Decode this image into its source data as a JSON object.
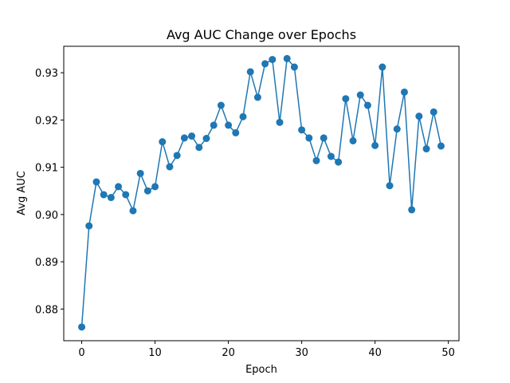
{
  "chart_data": {
    "type": "line",
    "title": "Avg AUC Change over Epochs",
    "xlabel": "Epoch",
    "ylabel": "Avg AUC",
    "xlim": [
      -2.45,
      51.45
    ],
    "ylim": [
      0.8733,
      0.9356
    ],
    "xticks": [
      0,
      10,
      20,
      30,
      40,
      50
    ],
    "yticks": [
      0.88,
      0.89,
      0.9,
      0.91,
      0.92,
      0.93
    ],
    "ytick_labels": [
      "0.88",
      "0.89",
      "0.90",
      "0.91",
      "0.92",
      "0.93"
    ],
    "grid": false,
    "marker": "circle",
    "color": "#1f77b4",
    "series": [
      {
        "x": [
          0,
          1,
          2,
          3,
          4,
          5,
          6,
          7,
          8,
          9,
          10,
          11,
          12,
          13,
          14,
          15,
          16,
          17,
          18,
          19,
          20,
          21,
          22,
          23,
          24,
          25,
          26,
          27,
          28,
          29,
          30,
          31,
          32,
          33,
          34,
          35,
          36,
          37,
          38,
          39,
          40,
          41,
          42,
          43,
          44,
          45,
          46,
          47,
          48,
          49
        ],
        "values": [
          0.8762,
          0.8976,
          0.9069,
          0.9042,
          0.9036,
          0.9059,
          0.9042,
          0.9008,
          0.9087,
          0.905,
          0.9059,
          0.9154,
          0.9101,
          0.9125,
          0.9162,
          0.9166,
          0.9142,
          0.9161,
          0.9189,
          0.9231,
          0.9189,
          0.9173,
          0.9207,
          0.9302,
          0.9248,
          0.9319,
          0.9328,
          0.9195,
          0.933,
          0.9312,
          0.9179,
          0.9162,
          0.9114,
          0.9162,
          0.9123,
          0.9111,
          0.9245,
          0.9156,
          0.9253,
          0.9231,
          0.9146,
          0.9312,
          0.9061,
          0.9181,
          0.9259,
          0.901,
          0.9208,
          0.9139,
          0.9217,
          0.9145
        ]
      }
    ]
  }
}
